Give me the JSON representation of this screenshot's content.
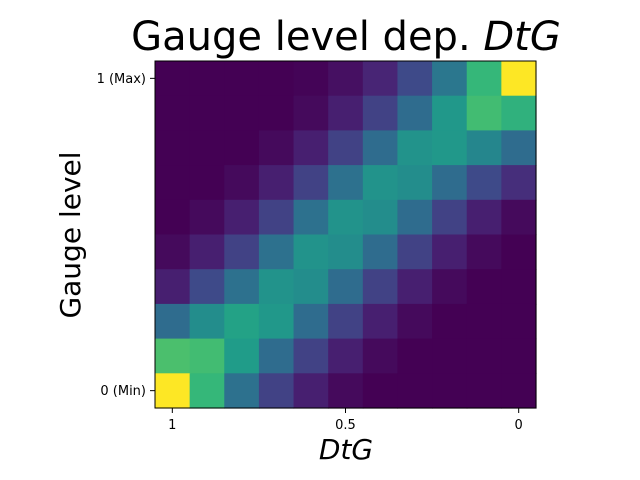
{
  "chart_data": {
    "type": "heatmap",
    "title_prefix": "Gauge level dep. ",
    "title_var": "DtG",
    "xlabel": "DtG",
    "ylabel": "Gauge level",
    "x_ticks": [
      {
        "col": 0,
        "label": "1"
      },
      {
        "col": 5,
        "label": "0.5"
      },
      {
        "col": 10,
        "label": "0"
      }
    ],
    "y_ticks": [
      {
        "row": 0,
        "label": "1 (Max)"
      },
      {
        "row": 9,
        "label": "0 (Min)"
      }
    ],
    "colormap": "viridis",
    "grid": false,
    "values": [
      [
        0.0,
        0.0,
        0.0,
        0.0,
        0.01,
        0.05,
        0.12,
        0.25,
        0.45,
        0.75,
        1.0
      ],
      [
        0.0,
        0.0,
        0.0,
        0.0,
        0.03,
        0.1,
        0.22,
        0.4,
        0.6,
        0.78,
        0.72
      ],
      [
        0.0,
        0.0,
        0.0,
        0.03,
        0.1,
        0.22,
        0.4,
        0.58,
        0.6,
        0.52,
        0.4
      ],
      [
        0.0,
        0.0,
        0.03,
        0.1,
        0.22,
        0.42,
        0.58,
        0.55,
        0.4,
        0.25,
        0.15
      ],
      [
        0.0,
        0.03,
        0.1,
        0.22,
        0.42,
        0.58,
        0.55,
        0.4,
        0.22,
        0.1,
        0.03
      ],
      [
        0.03,
        0.1,
        0.22,
        0.42,
        0.58,
        0.55,
        0.4,
        0.22,
        0.1,
        0.03,
        0.0
      ],
      [
        0.1,
        0.25,
        0.42,
        0.58,
        0.55,
        0.4,
        0.22,
        0.1,
        0.03,
        0.0,
        0.0
      ],
      [
        0.4,
        0.55,
        0.65,
        0.6,
        0.4,
        0.22,
        0.1,
        0.03,
        0.0,
        0.0,
        0.0
      ],
      [
        0.8,
        0.78,
        0.62,
        0.4,
        0.22,
        0.1,
        0.03,
        0.0,
        0.0,
        0.0,
        0.0
      ],
      [
        1.0,
        0.75,
        0.42,
        0.22,
        0.1,
        0.03,
        0.0,
        0.0,
        0.0,
        0.0,
        0.0
      ]
    ]
  }
}
